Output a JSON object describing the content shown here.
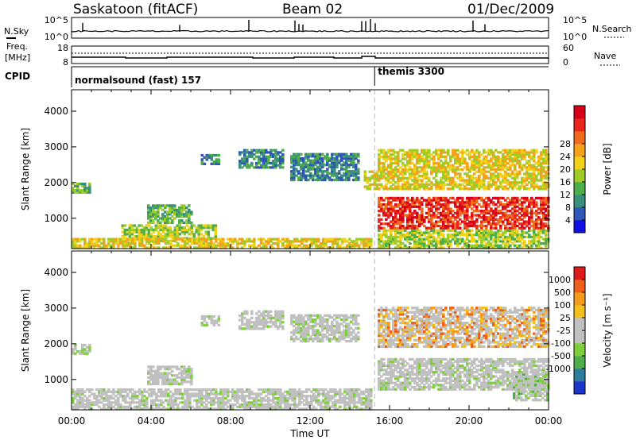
{
  "header": {
    "station": "Saskatoon (fitACF)",
    "beam": "Beam 02",
    "date": "01/Dec/2009"
  },
  "top_panel": {
    "left_label": "N.Sky",
    "right_label": "N.Search",
    "left_ticks": [
      "10^5",
      "10^0"
    ],
    "right_ticks": [
      "10^5",
      "10^0"
    ]
  },
  "freq_panel": {
    "left_label_1": "Freq.",
    "left_label_2": "[MHz]",
    "right_label": "Nave",
    "left_ticks": [
      "18",
      "8"
    ],
    "right_ticks": [
      "60",
      "0"
    ]
  },
  "cpid": {
    "label": "CPID",
    "modes": [
      {
        "name": "normalsound (fast) 157",
        "start_hour": 0
      },
      {
        "name": "themis 3300",
        "start_hour": 15.25
      }
    ]
  },
  "chart_data": [
    {
      "type": "heatmap",
      "name": "power",
      "ylabel": "Slant Range [km]",
      "xlabel": "Time UT",
      "xlim": [
        0,
        24
      ],
      "ylim": [
        150,
        4600
      ],
      "x_ticks": [
        "00:00",
        "04:00",
        "08:00",
        "12:00",
        "16:00",
        "20:00",
        "00:00"
      ],
      "y_ticks": [
        1000,
        2000,
        3000,
        4000
      ],
      "colorbar_label": "Power [dB]",
      "colorbar_ticks": [
        "4",
        "8",
        "12",
        "16",
        "20",
        "24",
        "28"
      ],
      "colorbar_colors": [
        "#1010e6",
        "#2f56b8",
        "#3a8f7e",
        "#4fae4a",
        "#9fcd28",
        "#f2d11a",
        "#f4a21c",
        "#ef6a1c",
        "#e8261a",
        "#d6001a"
      ],
      "regions": [
        {
          "t0": 0.0,
          "t1": 0.9,
          "r0": 1700,
          "r1": 2000,
          "level": 3
        },
        {
          "t0": 3.8,
          "t1": 6.0,
          "r0": 850,
          "r1": 1350,
          "level": 3
        },
        {
          "t0": 2.5,
          "t1": 7.2,
          "r0": 350,
          "r1": 800,
          "level": 4
        },
        {
          "t0": 0.0,
          "t1": 15.0,
          "r0": 150,
          "r1": 450,
          "level": 5
        },
        {
          "t0": 6.5,
          "t1": 7.4,
          "r0": 2500,
          "r1": 2800,
          "level": 2
        },
        {
          "t0": 8.4,
          "t1": 10.6,
          "r0": 2400,
          "r1": 2900,
          "level": 2
        },
        {
          "t0": 11.0,
          "t1": 14.4,
          "r0": 2050,
          "r1": 2800,
          "level": 2
        },
        {
          "t0": 14.7,
          "t1": 15.3,
          "r0": 1800,
          "r1": 2300,
          "level": 5
        },
        {
          "t0": 15.4,
          "t1": 24.0,
          "r0": 1800,
          "r1": 2900,
          "level": 5
        },
        {
          "t0": 15.4,
          "t1": 24.0,
          "r0": 700,
          "r1": 1550,
          "level": 8
        },
        {
          "t0": 15.4,
          "t1": 24.0,
          "r0": 150,
          "r1": 650,
          "level": 4
        }
      ]
    },
    {
      "type": "heatmap",
      "name": "velocity",
      "ylabel": "Slant Range [km]",
      "xlabel": "Time UT",
      "xlim": [
        0,
        24
      ],
      "ylim": [
        150,
        4600
      ],
      "x_ticks": [
        "00:00",
        "04:00",
        "08:00",
        "12:00",
        "16:00",
        "20:00",
        "00:00"
      ],
      "y_ticks": [
        1000,
        2000,
        3000,
        4000
      ],
      "colorbar_label": "Velocity [m s⁻¹]",
      "colorbar_ticks": [
        "1000",
        "500",
        "100",
        "25",
        "-25",
        "-100",
        "-500",
        "-1000"
      ],
      "colorbar_colors": [
        "#1a35c8",
        "#2f7d9c",
        "#4fae4a",
        "#7ed03a",
        "#c0c0c0",
        "#c0c0c0",
        "#f2c01a",
        "#f49a1c",
        "#ee5f1b",
        "#e01a1a"
      ],
      "regions": [
        {
          "t0": 0.0,
          "t1": 0.9,
          "r0": 1700,
          "r1": 2000,
          "level": 4
        },
        {
          "t0": 3.8,
          "t1": 6.0,
          "r0": 850,
          "r1": 1350,
          "level": 4
        },
        {
          "t0": 0.0,
          "t1": 15.0,
          "r0": 150,
          "r1": 700,
          "level": 4
        },
        {
          "t0": 6.5,
          "t1": 7.4,
          "r0": 2500,
          "r1": 2800,
          "level": 4
        },
        {
          "t0": 8.4,
          "t1": 10.6,
          "r0": 2400,
          "r1": 2900,
          "level": 4
        },
        {
          "t0": 11.0,
          "t1": 14.4,
          "r0": 2050,
          "r1": 2800,
          "level": 4
        },
        {
          "t0": 15.4,
          "t1": 24.0,
          "r0": 1900,
          "r1": 3000,
          "level": 7
        },
        {
          "t0": 15.4,
          "t1": 24.0,
          "r0": 700,
          "r1": 1550,
          "level": 4
        },
        {
          "t0": 22.2,
          "t1": 24.0,
          "r0": 400,
          "r1": 1200,
          "level": 3
        }
      ]
    }
  ]
}
